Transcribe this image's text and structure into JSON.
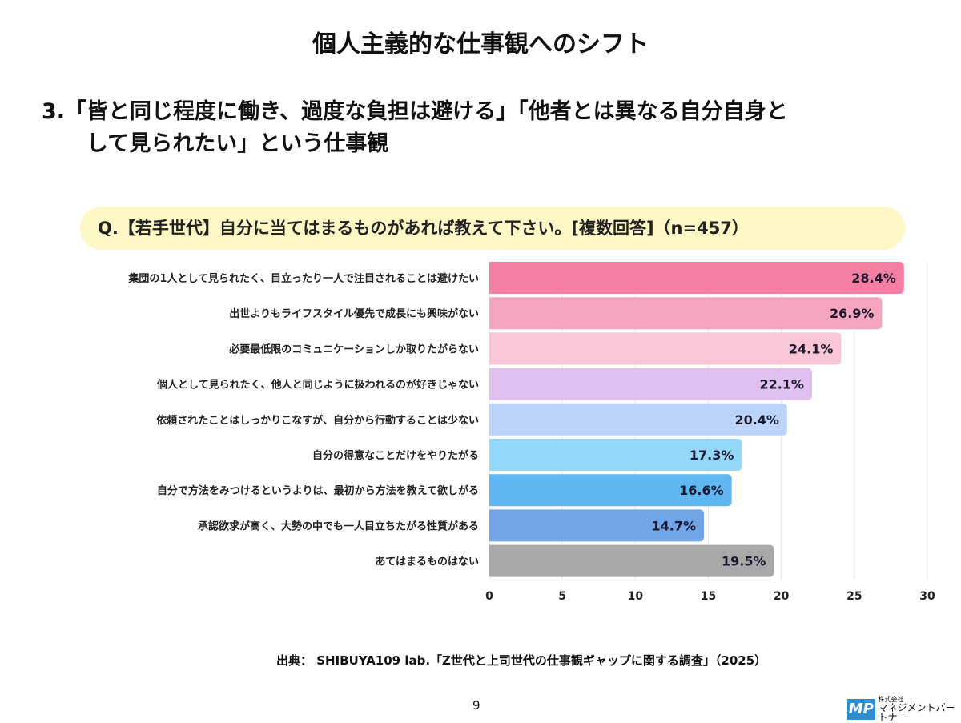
{
  "title": "個人主義的な仕事観へのシフト",
  "subtitle": {
    "line1": "3.「皆と同じ程度に働き、過度な負担は避ける」「他者とは異なる自分自身と",
    "line2": "して見られたい」という仕事観"
  },
  "question": "Q.【若手世代】自分に当てはまるものがあれば教えて下さい。[複数回答]（n=457）",
  "chart_data": {
    "type": "bar",
    "orientation": "horizontal",
    "categories": [
      "集団の1人として見られたく、目立ったり一人で注目されることは避けたい",
      "出世よりもライフスタイル優先で成長にも興味がない",
      "必要最低限のコミュニケーションしか取りたがらない",
      "個人として見られたく、他人と同じように扱われるのが好きじゃない",
      "依頼されたことはしっかりこなすが、自分から行動することは少ない",
      "自分の得意なことだけをやりたがる",
      "自分で方法をみつけるというよりは、最初から方法を教えて欲しがる",
      "承認欲求が高く、大勢の中でも一人目立ちたがる性質がある",
      "あてはまるものはない"
    ],
    "values": [
      28.4,
      26.9,
      24.1,
      22.1,
      20.4,
      17.3,
      16.6,
      14.7,
      19.5
    ],
    "value_labels": [
      "28.4%",
      "26.9%",
      "24.1%",
      "22.1%",
      "20.4%",
      "17.3%",
      "16.6%",
      "14.7%",
      "19.5%"
    ],
    "colors": [
      "#f47fa3",
      "#f6a5c0",
      "#f8c6d6",
      "#dfc0ef",
      "#bcd4fa",
      "#93d8fa",
      "#5fb6f0",
      "#72a4e8",
      "#a8a8a8"
    ],
    "xlim": [
      0,
      30
    ],
    "xticks": [
      "0",
      "5",
      "10",
      "15",
      "20",
      "25",
      "30"
    ],
    "grid": true,
    "xlabel": "",
    "ylabel": ""
  },
  "source": "出典： SHIBUYA109 lab.「Z世代と上司世代の仕事観ギャップに関する調査」（2025）",
  "page_number": "9",
  "logo": {
    "mark": "MP",
    "company_small": "株式会社",
    "company": "マネジメントパートナー"
  }
}
